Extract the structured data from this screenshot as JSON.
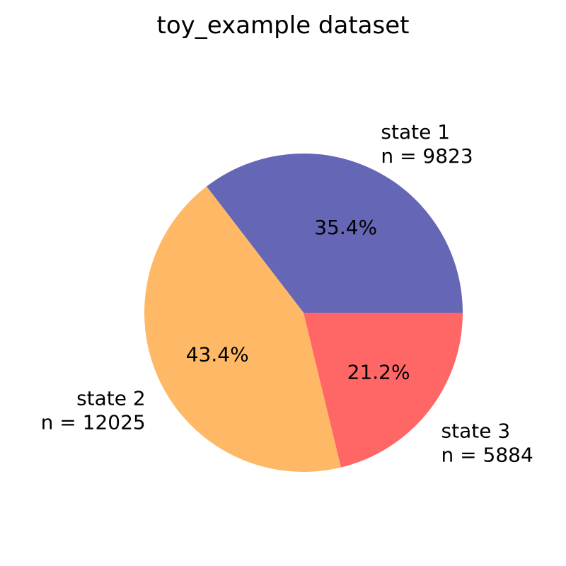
{
  "chart_data": {
    "type": "pie",
    "title": "toy_example dataset",
    "start_angle": 0,
    "direction": "counterclockwise",
    "slices": [
      {
        "label": "state 1",
        "count_text": "n = 9823",
        "value": 9823,
        "percent_text": "35.4%",
        "color": "#6666b7"
      },
      {
        "label": "state 2",
        "count_text": "n = 12025",
        "value": 12025,
        "percent_text": "43.4%",
        "color": "#ffb966"
      },
      {
        "label": "state 3",
        "count_text": "n = 5884",
        "value": 5884,
        "percent_text": "21.2%",
        "color": "#ff6666"
      }
    ]
  }
}
